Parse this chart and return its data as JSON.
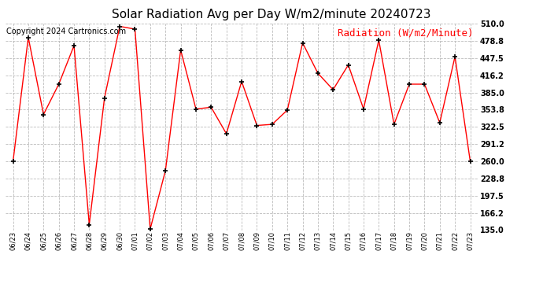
{
  "title": "Solar Radiation Avg per Day W/m2/minute 20240723",
  "copyright_text": "Copyright 2024 Cartronics.com",
  "legend_text": "Radiation (W/m2/Minute)",
  "labels": [
    "06/23",
    "06/24",
    "06/25",
    "06/26",
    "06/27",
    "06/28",
    "06/29",
    "06/30",
    "07/01",
    "07/02",
    "07/03",
    "07/04",
    "07/05",
    "07/06",
    "07/07",
    "07/08",
    "07/09",
    "07/10",
    "07/11",
    "07/12",
    "07/13",
    "07/14",
    "07/15",
    "07/16",
    "07/17",
    "07/18",
    "07/19",
    "07/20",
    "07/21",
    "07/22",
    "07/23"
  ],
  "values": [
    260.0,
    485.0,
    345.0,
    400.0,
    470.0,
    145.0,
    375.0,
    505.0,
    500.0,
    137.0,
    243.0,
    462.0,
    355.0,
    358.0,
    310.0,
    405.0,
    325.0,
    327.0,
    353.0,
    475.0,
    420.0,
    390.0,
    435.0,
    355.0,
    480.0,
    327.0,
    400.0,
    400.0,
    330.0,
    450.0,
    260.0
  ],
  "line_color": "#ff0000",
  "marker_color": "#000000",
  "background_color": "#ffffff",
  "grid_color": "#bbbbbb",
  "ylim": [
    135.0,
    510.0
  ],
  "yticks": [
    135.0,
    166.2,
    197.5,
    228.8,
    260.0,
    291.2,
    322.5,
    353.8,
    385.0,
    416.2,
    447.5,
    478.8,
    510.0
  ],
  "title_fontsize": 11,
  "copyright_fontsize": 7,
  "legend_fontsize": 9,
  "tick_fontsize": 7,
  "xtick_fontsize": 6
}
